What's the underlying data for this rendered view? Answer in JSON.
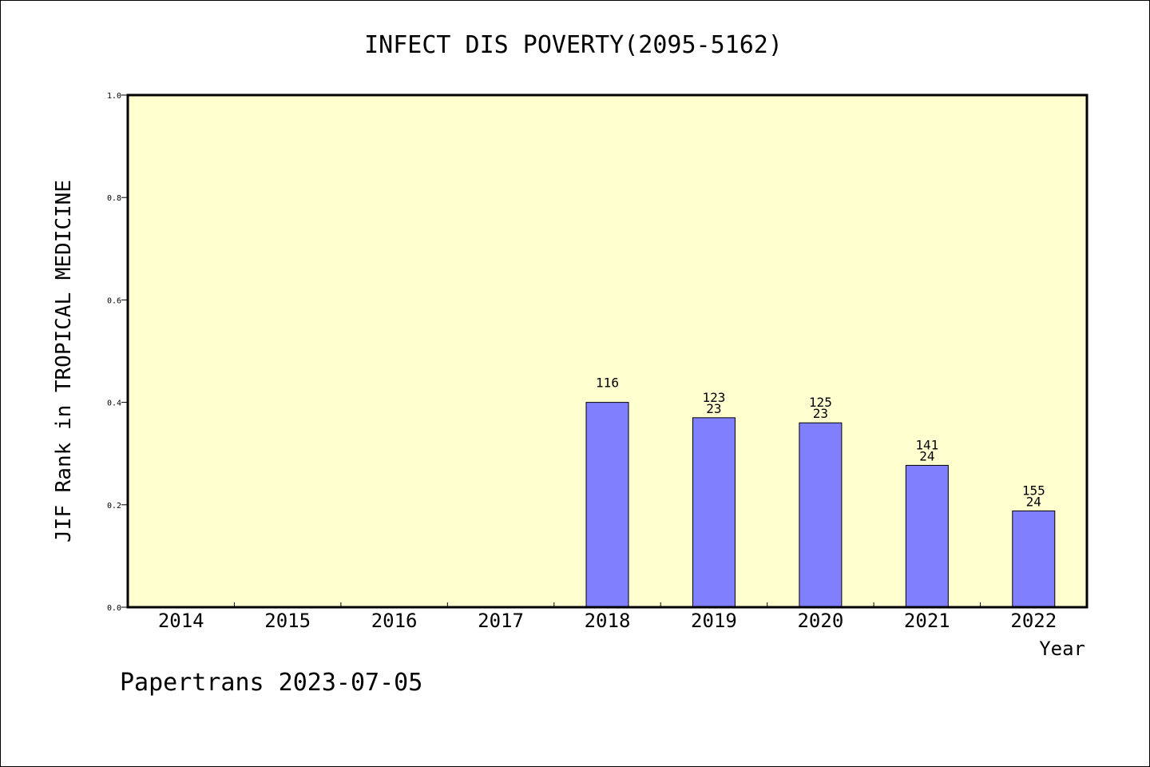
{
  "chart_data": {
    "type": "bar",
    "title": "INFECT DIS POVERTY(2095-5162)",
    "xlabel": "Year",
    "ylabel": "JIF Rank in TROPICAL MEDICINE",
    "categories": [
      "2014",
      "2015",
      "2016",
      "2017",
      "2018",
      "2019",
      "2020",
      "2021",
      "2022"
    ],
    "values": [
      null,
      null,
      null,
      null,
      0.4,
      0.37,
      0.36,
      0.277,
      0.188
    ],
    "bar_labels": [
      [],
      [],
      [],
      [],
      [
        "116"
      ],
      [
        "123",
        "23"
      ],
      [
        "125",
        "23"
      ],
      [
        "141",
        "24"
      ],
      [
        "155",
        "24"
      ]
    ],
    "ylim": [
      0,
      1.0
    ],
    "yticks": [
      "0.0",
      "0.2",
      "0.4",
      "0.6",
      "0.8",
      "1.0"
    ],
    "grid": false,
    "colors": {
      "plot_background": "#ffffd0",
      "bar_fill": "#8080ff",
      "bar_stroke": "#000000"
    }
  },
  "footer": {
    "credit": "Papertrans 2023-07-05"
  }
}
